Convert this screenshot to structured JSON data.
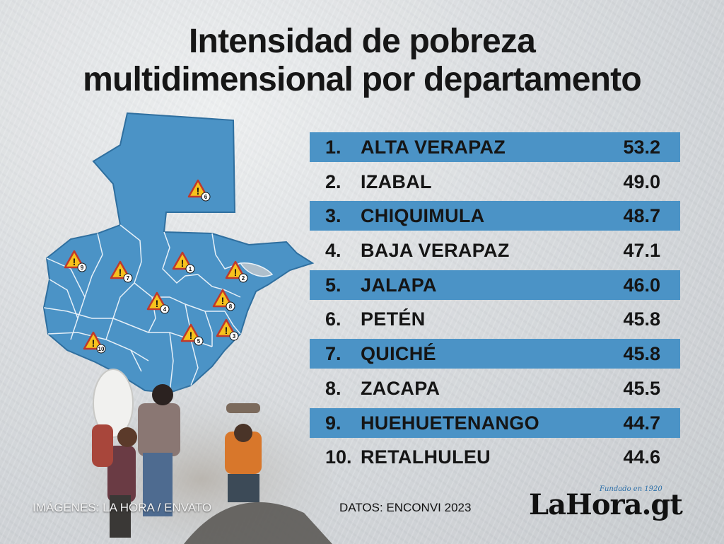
{
  "header": {
    "title_line1": "Intensidad de pobreza",
    "title_line2": "multidimensional por departamento"
  },
  "colors": {
    "map_fill": "#4b93c6",
    "band": "#4b93c6",
    "warning": "#f7c21d",
    "text": "#151515"
  },
  "map": {
    "markers": [
      {
        "rank": "1",
        "department": "ALTA VERAPAZ"
      },
      {
        "rank": "2",
        "department": "IZABAL"
      },
      {
        "rank": "3",
        "department": "CHIQUIMULA"
      },
      {
        "rank": "4",
        "department": "BAJA VERAPAZ"
      },
      {
        "rank": "5",
        "department": "JALAPA"
      },
      {
        "rank": "6",
        "department": "PETÉN"
      },
      {
        "rank": "7",
        "department": "QUICHÉ"
      },
      {
        "rank": "8",
        "department": "ZACAPA"
      },
      {
        "rank": "9",
        "department": "HUEHUETENANGO"
      },
      {
        "rank": "10",
        "department": "RETALHULEU"
      }
    ],
    "icon": "warning-triangle-icon"
  },
  "chart_data": {
    "type": "table",
    "columns": [
      "rank",
      "department",
      "value"
    ],
    "rows": [
      {
        "rank": "1.",
        "department": "ALTA VERAPAZ",
        "value": "53.2"
      },
      {
        "rank": "2.",
        "department": "IZABAL",
        "value": "49.0"
      },
      {
        "rank": "3.",
        "department": "CHIQUIMULA",
        "value": "48.7"
      },
      {
        "rank": "4.",
        "department": "BAJA VERAPAZ",
        "value": "47.1"
      },
      {
        "rank": "5.",
        "department": "JALAPA",
        "value": "46.0"
      },
      {
        "rank": "6.",
        "department": "PETÉN",
        "value": "45.8"
      },
      {
        "rank": "7.",
        "department": "QUICHÉ",
        "value": "45.8"
      },
      {
        "rank": "8.",
        "department": "ZACAPA",
        "value": "45.5"
      },
      {
        "rank": "9.",
        "department": "HUEHUETENANGO",
        "value": "44.7"
      },
      {
        "rank": "10.",
        "department": "RETALHULEU",
        "value": "44.6"
      }
    ],
    "title": "Intensidad de pobreza multidimensional por departamento"
  },
  "footer": {
    "credit": "IMÁGENES: LA HORA / ENVATO",
    "source": "DATOS: ENCONVI 2023",
    "logo_text": "LaHora.gt",
    "logo_tagline": "Fundado en 1920"
  }
}
